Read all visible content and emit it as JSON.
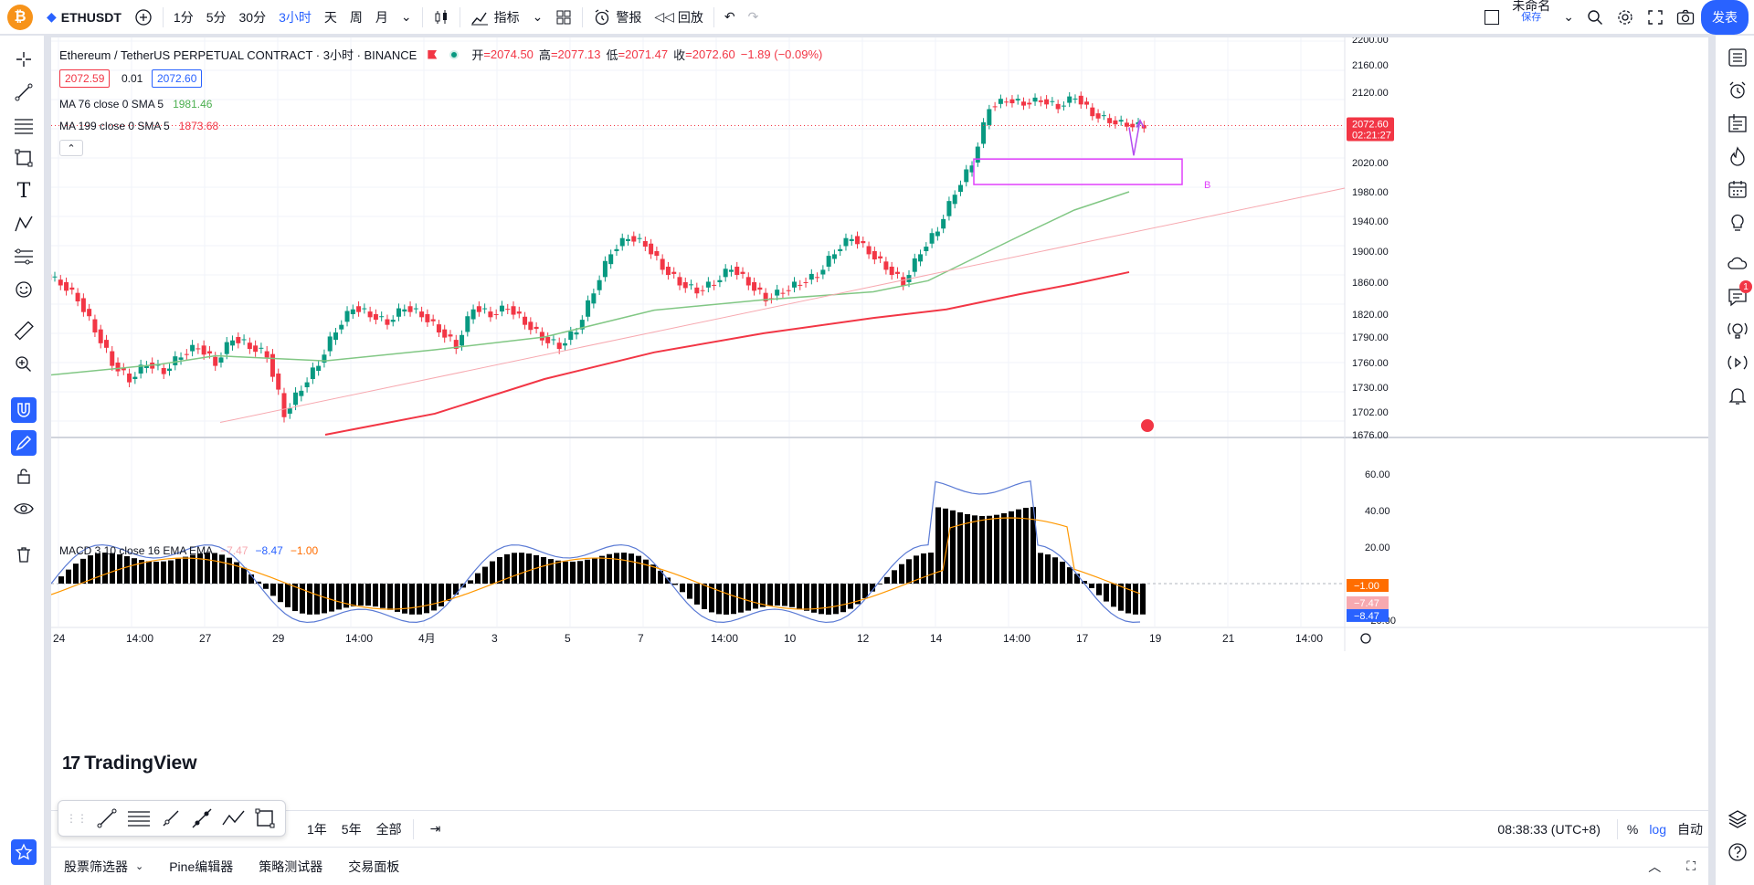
{
  "topbar": {
    "logo_letter": "₿",
    "symbol": "ETHUSDT",
    "intervals": [
      "1分",
      "5分",
      "30分",
      "3小时",
      "天",
      "周",
      "月"
    ],
    "active_interval": "3小时",
    "indicators_label": "指标",
    "alert_label": "警报",
    "replay_label": "回放",
    "layout_name": "未命名",
    "layout_sub": "保存",
    "publish_label": "发表"
  },
  "legend": {
    "title": "Ethereum / TetherUS PERPETUAL CONTRACT · 3小时 · BINANCE",
    "open_label": "开",
    "open": "=2074.50",
    "high_label": "高",
    "high": "=2077.13",
    "low_label": "低",
    "low": "=2071.47",
    "close_label": "收",
    "close": "=2072.60",
    "change": "−1.89 (−0.09%)",
    "sell_price": "2072.59",
    "spread": "0.01",
    "buy_price": "2072.60"
  },
  "ma": [
    {
      "label": "MA 76 close 0 SMA 5",
      "value": "1981.46",
      "color": "#4caf50"
    },
    {
      "label": "MA 199 close 0 SMA 5",
      "value": "1873.68",
      "color": "#f23645"
    }
  ],
  "macd": {
    "label": "MACD 3 10 close 16 EMA EMA",
    "v1": "−7.47",
    "v2": "−8.47",
    "v3": "−1.00",
    "axis": [
      "60.00",
      "40.00",
      "20.00",
      "−20.00"
    ],
    "tags": [
      "−1.00",
      "−7.47",
      "−8.47"
    ]
  },
  "price_axis": [
    "2200.00",
    "2160.00",
    "2120.00",
    "2020.00",
    "1980.00",
    "1940.00",
    "1900.00",
    "1860.00",
    "1820.00",
    "1790.00",
    "1760.00",
    "1730.00",
    "1702.00",
    "1676.00"
  ],
  "last_price": "2072.60",
  "countdown": "02:21:27",
  "time_axis": [
    "24",
    "14:00",
    "27",
    "29",
    "14:00",
    "4月",
    "3",
    "5",
    "7",
    "14:00",
    "10",
    "12",
    "14",
    "14:00",
    "17",
    "19",
    "21",
    "14:00"
  ],
  "annotation_B": "B",
  "branding": "TradingView",
  "ranges": [
    "1年",
    "5年",
    "全部"
  ],
  "clock": "08:38:33 (UTC+8)",
  "scale_opts": [
    "%",
    "log",
    "自动"
  ],
  "bottom_tabs": [
    "股票筛选器",
    "Pine编辑器",
    "策略测试器",
    "交易面板"
  ],
  "chart_data": {
    "type": "candlestick",
    "symbol": "ETHUSDT",
    "interval": "3小时",
    "ylim": [
      1676,
      2200
    ],
    "close_series_approx": [
      1860,
      1840,
      1800,
      1760,
      1740,
      1760,
      1750,
      1770,
      1780,
      1760,
      1790,
      1780,
      1770,
      1700,
      1730,
      1760,
      1800,
      1830,
      1820,
      1810,
      1830,
      1820,
      1800,
      1780,
      1830,
      1820,
      1830,
      1810,
      1790,
      1780,
      1800,
      1850,
      1900,
      1920,
      1910,
      1880,
      1860,
      1850,
      1860,
      1880,
      1860,
      1840,
      1850,
      1860,
      1870,
      1900,
      1920,
      1900,
      1880,
      1860,
      1900,
      1930,
      1980,
      2020,
      2100,
      2110,
      2105,
      2110,
      2100,
      2115,
      2090,
      2080,
      2075,
      2072.6
    ],
    "ma76_end": 1981.46,
    "ma199_end": 1873.68
  }
}
